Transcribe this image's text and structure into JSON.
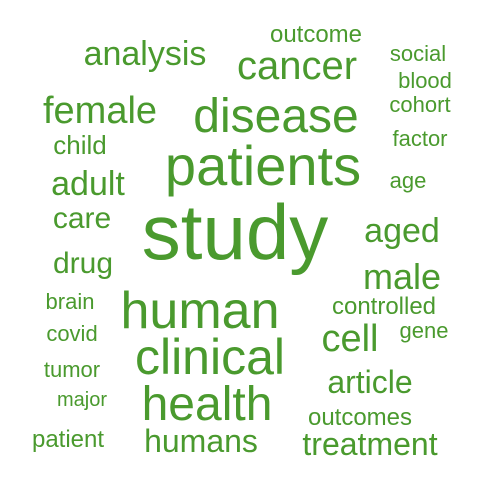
{
  "word_cloud": {
    "color": "#4a9a2e",
    "words": [
      {
        "text": "study"
      },
      {
        "text": "patients"
      },
      {
        "text": "human"
      },
      {
        "text": "clinical"
      },
      {
        "text": "health"
      },
      {
        "text": "disease"
      },
      {
        "text": "cancer"
      },
      {
        "text": "analysis"
      },
      {
        "text": "female"
      },
      {
        "text": "humans"
      },
      {
        "text": "treatment"
      },
      {
        "text": "male"
      },
      {
        "text": "adult"
      },
      {
        "text": "cell"
      },
      {
        "text": "aged"
      },
      {
        "text": "article"
      },
      {
        "text": "care"
      },
      {
        "text": "drug"
      },
      {
        "text": "outcome"
      },
      {
        "text": "child"
      },
      {
        "text": "controlled"
      },
      {
        "text": "outcomes"
      },
      {
        "text": "patient"
      },
      {
        "text": "social"
      },
      {
        "text": "blood"
      },
      {
        "text": "cohort"
      },
      {
        "text": "factor"
      },
      {
        "text": "age"
      },
      {
        "text": "brain"
      },
      {
        "text": "covid"
      },
      {
        "text": "tumor"
      },
      {
        "text": "major"
      },
      {
        "text": "gene"
      }
    ]
  }
}
